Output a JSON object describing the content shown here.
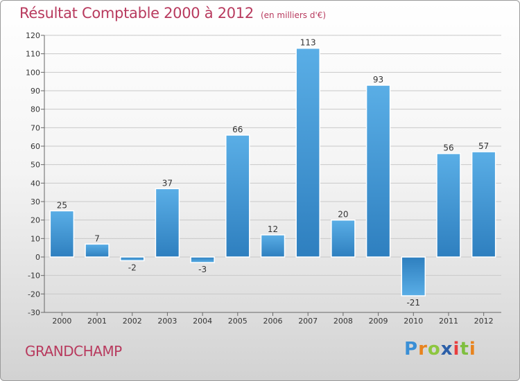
{
  "header": {
    "title": "Résultat Comptable 2000 à 2012",
    "subtitle": "(en milliers d'€)"
  },
  "footer": {
    "town": "GRANDCHAMP",
    "logo_letters": [
      "P",
      "r",
      "o",
      "x",
      "i",
      "t",
      "i"
    ],
    "logo_colors": [
      "#3a8fd6",
      "#e8831e",
      "#8dc63f",
      "#2c5fa8",
      "#e83e3e",
      "#7fbf3f",
      "#e8831e"
    ]
  },
  "colors": {
    "bar_light": "#5aaee6",
    "bar_dark": "#2e7fbf",
    "grid": "#c8c8c8",
    "axis": "#666666"
  },
  "chart_data": {
    "type": "bar",
    "title": "Résultat Comptable 2000 à 2012",
    "subtitle": "(en milliers d'€)",
    "categories": [
      "2000",
      "2001",
      "2002",
      "2003",
      "2004",
      "2005",
      "2006",
      "2007",
      "2008",
      "2009",
      "2010",
      "2011",
      "2012"
    ],
    "values": [
      25,
      7,
      -2,
      37,
      -3,
      66,
      12,
      113,
      20,
      93,
      -21,
      56,
      57
    ],
    "value_labels": [
      "25",
      "7",
      "-2",
      "37",
      "-3",
      "66",
      "12",
      "113",
      "20",
      "93",
      "-21",
      "56",
      "57"
    ],
    "ylim": [
      -30,
      120
    ],
    "yticks": [
      -30,
      -20,
      -10,
      0,
      10,
      20,
      30,
      40,
      50,
      60,
      70,
      80,
      90,
      100,
      110,
      120
    ],
    "xlabel": "",
    "ylabel": "",
    "grid": true
  }
}
